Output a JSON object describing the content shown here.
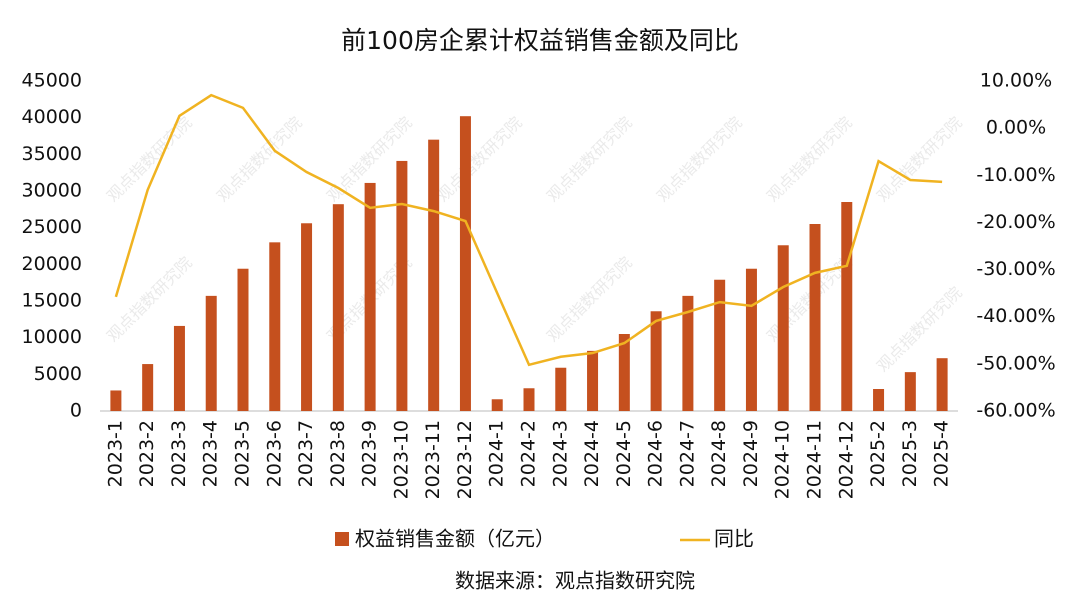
{
  "chart_data": {
    "type": "bar_line",
    "title": "前100房企累计权益销售金额及同比",
    "source": "数据来源：观点指数研究院",
    "watermark": "观点指数研究院",
    "categories": [
      "2023-1",
      "2023-2",
      "2023-3",
      "2023-4",
      "2023-5",
      "2023-6",
      "2023-7",
      "2023-8",
      "2023-9",
      "2023-10",
      "2023-11",
      "2023-12",
      "2024-1",
      "2024-2",
      "2024-3",
      "2024-4",
      "2024-5",
      "2024-6",
      "2024-7",
      "2024-8",
      "2024-9",
      "2024-10",
      "2024-11",
      "2024-12",
      "2025-2",
      "2025-3",
      "2025-4"
    ],
    "series": [
      {
        "name": "权益销售金额（亿元）",
        "type": "bar",
        "color": "#c5501e",
        "values": [
          2800,
          6400,
          11600,
          15700,
          19400,
          23000,
          25600,
          28200,
          31100,
          34100,
          37000,
          40200,
          1600,
          3100,
          5900,
          8200,
          10500,
          13600,
          15700,
          17900,
          19400,
          22600,
          25500,
          28500,
          3000,
          5300,
          7200
        ]
      },
      {
        "name": "同比",
        "type": "line",
        "axis": "y2",
        "color": "#f0b321",
        "values": [
          -35.8,
          -13.1,
          2.6,
          7.0,
          4.3,
          -4.8,
          -9.3,
          -12.7,
          -16.9,
          -16.1,
          -17.6,
          -19.7,
          -35.0,
          -50.2,
          -48.5,
          -47.7,
          -45.6,
          -40.9,
          -39.0,
          -36.9,
          -37.7,
          -33.7,
          -30.7,
          -29.2,
          -7.0,
          -11.0,
          -11.4
        ]
      }
    ],
    "ylim": [
      0,
      45000
    ],
    "yticks": [
      0,
      5000,
      10000,
      15000,
      20000,
      25000,
      30000,
      35000,
      40000,
      45000
    ],
    "y2lim": [
      -60,
      10
    ],
    "y2ticks": [
      {
        "value": -60,
        "label": "-60.00%"
      },
      {
        "value": -50,
        "label": "-50.00%"
      },
      {
        "value": -40,
        "label": "-40.00%"
      },
      {
        "value": -30,
        "label": "-30.00%"
      },
      {
        "value": -20,
        "label": "-20.00%"
      },
      {
        "value": -10,
        "label": "-10.00%"
      },
      {
        "value": 0,
        "label": "0.00%"
      },
      {
        "value": 10,
        "label": "10.00%"
      }
    ],
    "grid": false,
    "legend": "bottom"
  }
}
